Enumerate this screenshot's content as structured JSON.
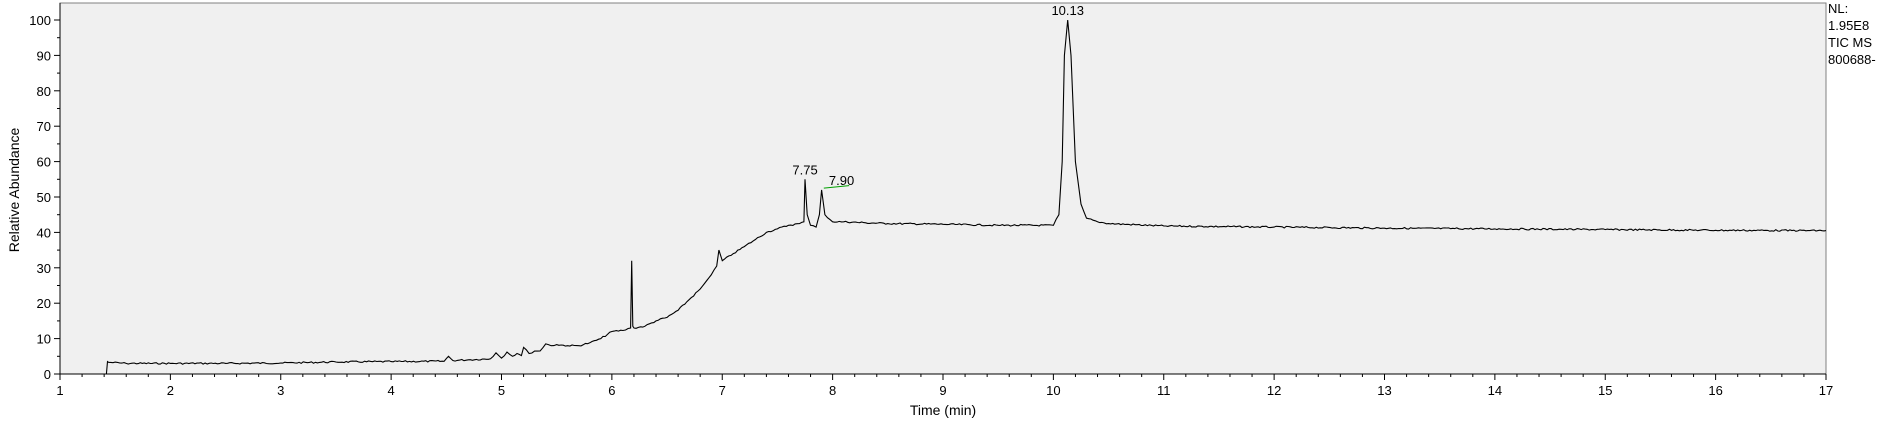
{
  "chart_data": {
    "type": "line",
    "title": "",
    "xlabel": "Time (min)",
    "ylabel": "Relative Abundance",
    "xlim": [
      1,
      17
    ],
    "ylim": [
      0,
      100
    ],
    "xticks": [
      1,
      2,
      3,
      4,
      5,
      6,
      7,
      8,
      9,
      10,
      11,
      12,
      13,
      14,
      15,
      16,
      17
    ],
    "yticks": [
      0,
      10,
      20,
      30,
      40,
      50,
      60,
      70,
      80,
      90,
      100
    ],
    "grid": false,
    "plot_background": "#f0f0f0",
    "line_color": "#000000",
    "baseline_color": "#00a000",
    "peak_labels": [
      {
        "label": "7.75",
        "x": 7.75,
        "y": 55
      },
      {
        "label": "7.90",
        "x": 7.9,
        "y": 52
      },
      {
        "label": "10.13",
        "x": 10.13,
        "y": 100
      }
    ],
    "series": [
      {
        "values_x": [
          1.0,
          1.42,
          1.43,
          1.44,
          1.6,
          2.0,
          2.5,
          3.0,
          3.5,
          4.0,
          4.48,
          4.52,
          4.56,
          4.7,
          4.9,
          4.95,
          5.0,
          5.05,
          5.1,
          5.14,
          5.18,
          5.2,
          5.25,
          5.3,
          5.35,
          5.4,
          5.45,
          5.5,
          5.6,
          5.7,
          5.8,
          5.9,
          6.0,
          6.1,
          6.17,
          6.18,
          6.19,
          6.2,
          6.3,
          6.4,
          6.5,
          6.6,
          6.7,
          6.8,
          6.9,
          6.95,
          6.97,
          7.0,
          7.1,
          7.2,
          7.3,
          7.4,
          7.5,
          7.6,
          7.7,
          7.74,
          7.75,
          7.77,
          7.8,
          7.85,
          7.88,
          7.9,
          7.93,
          8.0,
          8.1,
          8.3,
          8.5,
          9.0,
          9.5,
          10.0,
          10.05,
          10.08,
          10.1,
          10.13,
          10.16,
          10.2,
          10.25,
          10.3,
          10.4,
          10.5,
          11.0,
          12.0,
          13.0,
          14.0,
          15.0,
          16.0,
          17.0
        ],
        "values_y": [
          0.0,
          0.0,
          3.5,
          3.3,
          3.0,
          3.0,
          3.0,
          3.1,
          3.4,
          3.5,
          3.6,
          5.0,
          3.8,
          4.0,
          4.3,
          6.0,
          4.5,
          6.2,
          5.0,
          5.8,
          5.2,
          7.5,
          5.8,
          6.5,
          6.5,
          8.5,
          8.0,
          8.3,
          8.0,
          8.0,
          8.8,
          10.0,
          12.0,
          12.3,
          13.0,
          32.0,
          13.5,
          13.0,
          13.5,
          15.0,
          16.0,
          18.0,
          21.0,
          24.0,
          28.0,
          30.5,
          35.0,
          32.0,
          34.0,
          36.0,
          38.0,
          40.0,
          41.0,
          42.0,
          42.5,
          43.0,
          55.0,
          45.0,
          42.0,
          41.5,
          45.0,
          52.0,
          45.0,
          43.0,
          43.0,
          42.7,
          42.5,
          42.3,
          42.0,
          42.0,
          45.0,
          60.0,
          90.0,
          100.0,
          90.0,
          60.0,
          48.0,
          44.0,
          43.0,
          42.5,
          41.8,
          41.5,
          41.2,
          41.0,
          40.8,
          40.6,
          40.5
        ]
      }
    ]
  },
  "side_panel": {
    "line1": "NL:",
    "line2": "1.95E8",
    "line3": "TIC  MS",
    "line4": "800688-"
  }
}
